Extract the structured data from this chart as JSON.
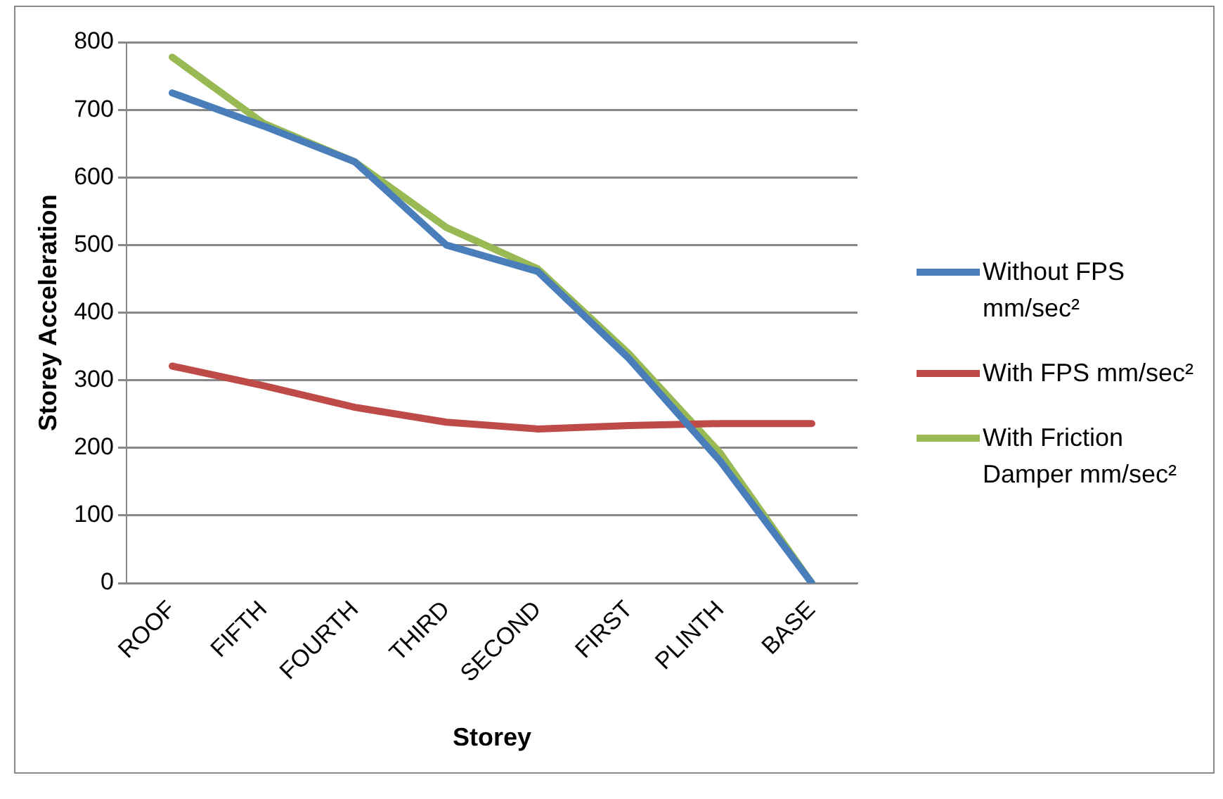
{
  "chart_data": {
    "type": "line",
    "xlabel": "Storey",
    "ylabel": "Storey Acceleration",
    "categories": [
      "ROOF",
      "FIFTH",
      "FOURTH",
      "THIRD",
      "SECOND",
      "FIRST",
      "PLINTH",
      "BASE"
    ],
    "series": [
      {
        "name": "Without FPS mm/sec²",
        "color": "#4a7ebb",
        "values": [
          725,
          676,
          623,
          500,
          461,
          332,
          180,
          0
        ]
      },
      {
        "name": "With FPS mm/sec²",
        "color": "#be4b48",
        "values": [
          321,
          292,
          260,
          238,
          228,
          233,
          236,
          236
        ]
      },
      {
        "name": "With Friction Damper mm/sec²",
        "color": "#98b954",
        "values": [
          778,
          680,
          623,
          526,
          465,
          339,
          192,
          0
        ]
      }
    ],
    "ylim": [
      0,
      800
    ],
    "yticks": [
      0,
      100,
      200,
      300,
      400,
      500,
      600,
      700,
      800
    ],
    "grid": "y",
    "legend": "right",
    "marker": "none",
    "line_style": "solid"
  }
}
